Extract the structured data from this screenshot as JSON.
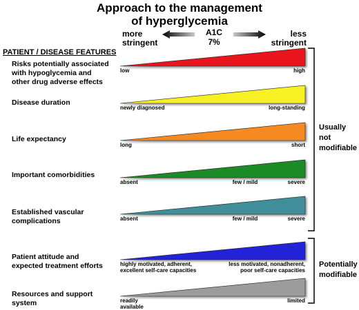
{
  "title": {
    "line1": "Approach to the management",
    "line2": "of hyperglycemia"
  },
  "axis": {
    "left_label_1": "more",
    "left_label_2": "stringent",
    "center_label_1": "A1C",
    "center_label_2": "7%",
    "right_label_1": "less",
    "right_label_2": "stringent"
  },
  "header": "PATIENT / DISEASE FEATURES",
  "features": [
    {
      "label_lines": [
        "Risks potentially associated",
        "with hypoglycemia and",
        "other drug adverse effects"
      ],
      "left": "low",
      "mid": "",
      "right": "high",
      "color": "#e8141b"
    },
    {
      "label_lines": [
        "Disease duration"
      ],
      "left": "newly diagnosed",
      "mid": "",
      "right": "long-standing",
      "color": "#f7f020"
    },
    {
      "label_lines": [
        "Life expectancy"
      ],
      "left": "long",
      "mid": "",
      "right": "short",
      "color": "#f58a22"
    },
    {
      "label_lines": [
        "Important comorbidities"
      ],
      "left": "absent",
      "mid": "few / mild",
      "right": "severe",
      "color": "#1a8a27"
    },
    {
      "label_lines": [
        "Established vascular",
        "complications"
      ],
      "left": "absent",
      "mid": "few / mild",
      "right": "severe",
      "color": "#3f8e9a"
    },
    {
      "label_lines": [
        "Patient attitude and",
        "expected treatment efforts"
      ],
      "left_lines": [
        "highly motivated, adherent,",
        "excellent self-care capacities"
      ],
      "right_lines": [
        "less motivated, nonadherent,",
        "poor self-care capacities"
      ],
      "color": "#2323d6"
    },
    {
      "label_lines": [
        "Resources and support",
        "system"
      ],
      "left_lines": [
        "readily",
        "available"
      ],
      "right_lines": [
        "limited"
      ],
      "color": "#9c9c9c"
    }
  ],
  "brackets": [
    {
      "label_lines": [
        "Usually not",
        "modifiable"
      ]
    },
    {
      "label_lines": [
        "Potentially",
        "modifiable"
      ]
    }
  ]
}
